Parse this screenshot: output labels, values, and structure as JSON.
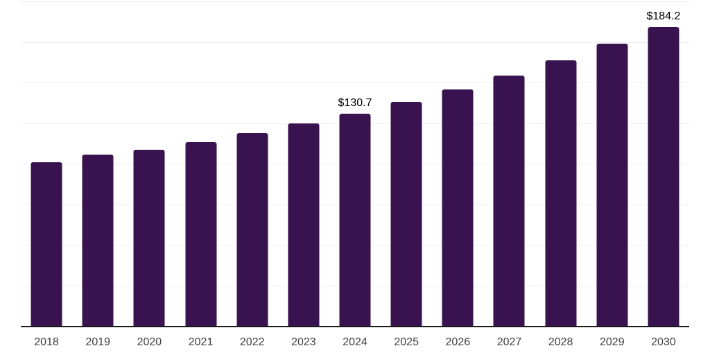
{
  "chart_data": {
    "type": "bar",
    "title": "",
    "xlabel": "",
    "ylabel": "",
    "categories": [
      "2018",
      "2019",
      "2020",
      "2021",
      "2022",
      "2023",
      "2024",
      "2025",
      "2026",
      "2027",
      "2028",
      "2029",
      "2030"
    ],
    "values": [
      101.0,
      105.7,
      108.5,
      113.2,
      118.9,
      124.9,
      130.7,
      137.9,
      145.9,
      154.4,
      163.5,
      174.1,
      184.2
    ],
    "annotations": [
      {
        "category": "2024",
        "text": "$130.7"
      },
      {
        "category": "2030",
        "text": "$184.2"
      }
    ],
    "ylim": [
      0,
      200
    ],
    "gridline_step": 25,
    "grid": "horizontal",
    "legend": "none",
    "colors": {
      "bar": "#38134F",
      "gridline": "#ededed",
      "axis_line": "#1a1a1a",
      "tick_label": "#404040",
      "annotation_text": "#000000",
      "background": "#ffffff"
    }
  }
}
